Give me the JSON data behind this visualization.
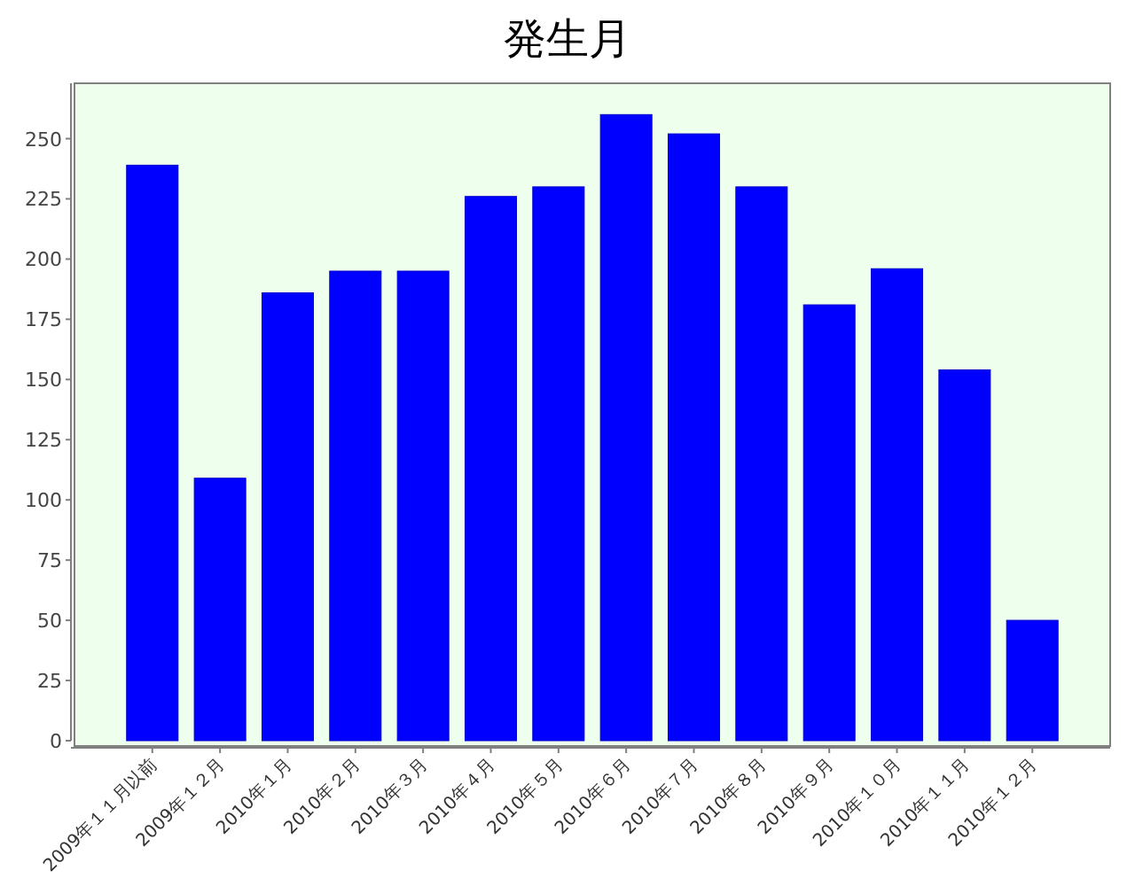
{
  "chart_data": {
    "type": "bar",
    "title": "発生月",
    "categories": [
      "2009年１１月以前",
      "2009年１２月",
      "2010年１月",
      "2010年２月",
      "2010年３月",
      "2010年４月",
      "2010年５月",
      "2010年６月",
      "2010年７月",
      "2010年８月",
      "2010年９月",
      "2010年１０月",
      "2010年１１月",
      "2010年１２月"
    ],
    "values": [
      239,
      109,
      186,
      195,
      195,
      226,
      230,
      260,
      252,
      230,
      181,
      196,
      154,
      50
    ],
    "color": "#0000ff",
    "ylim": [
      0,
      273
    ],
    "yticks": [
      0,
      25,
      50,
      75,
      100,
      125,
      150,
      175,
      200,
      225,
      250
    ],
    "grid": false
  }
}
